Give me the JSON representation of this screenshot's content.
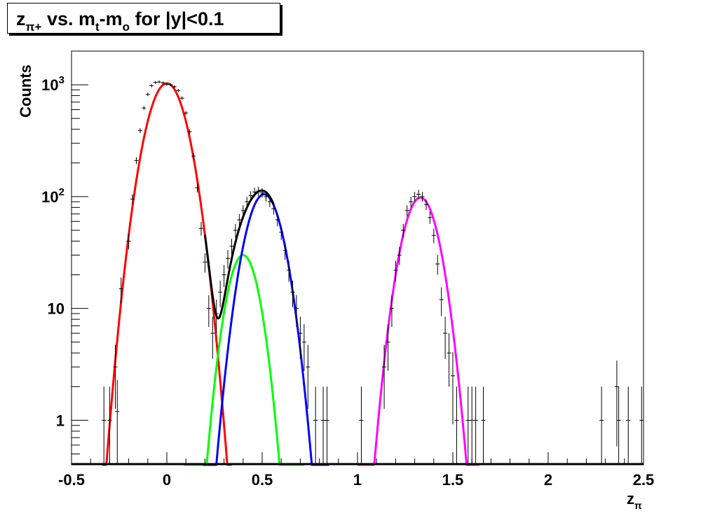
{
  "title": {
    "parts": [
      {
        "text": "z",
        "style": "normal"
      },
      {
        "text": "π+",
        "style": "sub"
      },
      {
        "text": " vs. m",
        "style": "normal"
      },
      {
        "text": "t",
        "style": "sub"
      },
      {
        "text": "-m",
        "style": "normal"
      },
      {
        "text": "o",
        "style": "sub"
      },
      {
        "text": " for |y|<0.1",
        "style": "normal"
      }
    ]
  },
  "chart_data": {
    "type": "line",
    "title": "zπ+ vs. mt-mo for |y|<0.1",
    "xlabel": "zπ",
    "xlabel_parts": [
      {
        "text": "z",
        "style": "normal"
      },
      {
        "text": "π",
        "style": "sub"
      }
    ],
    "ylabel": "Counts",
    "xlim": [
      -0.5,
      2.5
    ],
    "ylim": [
      0.4,
      2000
    ],
    "yscale": "log",
    "grid": false,
    "x_ticks": [
      {
        "value": -0.5,
        "label": "-0.5"
      },
      {
        "value": 0,
        "label": "0"
      },
      {
        "value": 0.5,
        "label": "0.5"
      },
      {
        "value": 1,
        "label": "1"
      },
      {
        "value": 1.5,
        "label": "1.5"
      },
      {
        "value": 2,
        "label": "2"
      },
      {
        "value": 2.5,
        "label": "2.5"
      }
    ],
    "y_ticks": [
      {
        "value": 1,
        "label": "1"
      },
      {
        "value": 10,
        "label": "10"
      },
      {
        "value": 100,
        "label": "10",
        "exp": "2"
      },
      {
        "value": 1000,
        "label": "10",
        "exp": "3"
      }
    ],
    "fit_curves": [
      {
        "color": "#ff0000",
        "type": "gaussian",
        "amplitude": 1030,
        "mean": 0.0,
        "sigma": 0.08,
        "x_range": [
          -0.34,
          0.34
        ]
      },
      {
        "color": "#00ff00",
        "type": "gaussian",
        "amplitude": 30,
        "mean": 0.4,
        "sigma": 0.065,
        "x_range": [
          0.09,
          0.72
        ]
      },
      {
        "color": "#0000ff",
        "type": "gaussian",
        "amplitude": 105,
        "mean": 0.51,
        "sigma": 0.075,
        "x_range": [
          0.19,
          0.85
        ]
      },
      {
        "color": "#ff00ff",
        "type": "gaussian",
        "amplitude": 98,
        "mean": 1.33,
        "sigma": 0.073,
        "x_range": [
          1.0,
          1.64
        ]
      },
      {
        "color": "#000000",
        "type": "sum",
        "components": [
          0,
          1,
          2
        ],
        "x_range": [
          0.2,
          0.56
        ]
      }
    ],
    "data_points": {
      "x": [
        -0.33,
        -0.3,
        -0.27,
        -0.26,
        -0.24,
        -0.2,
        -0.18,
        -0.16,
        -0.14,
        -0.12,
        -0.1,
        -0.08,
        -0.06,
        -0.04,
        -0.02,
        0.0,
        0.02,
        0.04,
        0.06,
        0.08,
        0.1,
        0.12,
        0.14,
        0.16,
        0.18,
        0.2,
        0.22,
        0.24,
        0.26,
        0.28,
        0.3,
        0.32,
        0.34,
        0.36,
        0.38,
        0.4,
        0.42,
        0.44,
        0.46,
        0.48,
        0.5,
        0.52,
        0.54,
        0.56,
        0.58,
        0.6,
        0.62,
        0.64,
        0.66,
        0.68,
        0.7,
        0.72,
        0.74,
        0.78,
        0.82,
        0.84,
        1.02,
        1.14,
        1.16,
        1.18,
        1.2,
        1.22,
        1.24,
        1.26,
        1.28,
        1.3,
        1.32,
        1.34,
        1.36,
        1.38,
        1.4,
        1.42,
        1.44,
        1.46,
        1.48,
        1.5,
        1.52,
        1.58,
        1.6,
        1.62,
        1.66,
        2.28,
        2.36,
        2.37,
        2.42,
        2.49
      ],
      "y": [
        1,
        1,
        3,
        1.2,
        15,
        40,
        95,
        210,
        390,
        620,
        820,
        980,
        1050,
        1060,
        1040,
        1010,
        1000,
        960,
        890,
        760,
        560,
        380,
        230,
        120,
        52,
        26,
        10,
        6,
        9,
        14,
        20,
        28,
        36,
        50,
        62,
        75,
        90,
        102,
        110,
        112,
        108,
        100,
        90,
        78,
        62,
        48,
        33,
        22,
        14,
        10,
        6,
        5,
        3,
        1,
        1,
        1,
        1,
        3,
        5,
        10,
        22,
        30,
        50,
        75,
        90,
        100,
        105,
        100,
        85,
        65,
        45,
        25,
        12,
        6,
        4,
        2.5,
        1,
        1,
        1,
        1,
        1,
        1,
        2,
        1,
        1,
        1
      ]
    }
  }
}
